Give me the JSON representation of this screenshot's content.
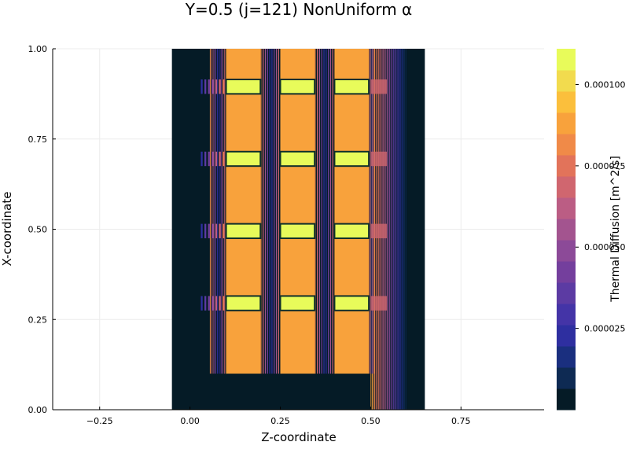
{
  "chart_data": {
    "type": "heatmap",
    "title": "Y=0.5 (j=121) NonUniform α",
    "xlabel": "Z-coordinate",
    "ylabel": "X-coordinate",
    "colorbar_label": "Thermal Diffusion [m^2/s]",
    "xlim": [
      -0.38,
      0.98
    ],
    "ylim": [
      0.0,
      1.0
    ],
    "x_ticks": [
      -0.25,
      0.0,
      0.25,
      0.5,
      0.75
    ],
    "x_tick_labels": [
      "−0.25",
      "0.00",
      "0.25",
      "0.50",
      "0.75"
    ],
    "y_ticks": [
      0.0,
      0.25,
      0.5,
      0.75,
      1.0
    ],
    "y_tick_labels": [
      "0.00",
      "0.25",
      "0.50",
      "0.75",
      "1.00"
    ],
    "grid": true,
    "legend": "colorbar-right",
    "colorbar": {
      "range": [
        0.0,
        0.000111
      ],
      "ticks": [
        2.5e-05,
        5e-05,
        7.5e-05,
        0.0001
      ],
      "tick_labels": [
        "0.000025",
        "0.000050",
        "0.000075",
        "0.000100"
      ],
      "levels": 16,
      "colors": [
        "#051b26",
        "#0e2a53",
        "#1a2f7f",
        "#2e2fa0",
        "#4434a7",
        "#5c3ba3",
        "#743f9d",
        "#8c4a98",
        "#a3548f",
        "#bb5d84",
        "#d0666f",
        "#e2735a",
        "#f08a48",
        "#f8a23c",
        "#fbbf3c",
        "#f2db4e",
        "#e8fb5a"
      ]
    },
    "data_region": {
      "z": [
        -0.05,
        0.65
      ],
      "x": [
        0.0,
        1.0
      ]
    },
    "background_value": 0.0,
    "block_value": 9.1e-05,
    "spacer_value": 0.000111,
    "blocks": [
      {
        "z": [
          0.1,
          0.195
        ],
        "x": [
          0.1,
          1.0
        ]
      },
      {
        "z": [
          0.25,
          0.345
        ],
        "x": [
          0.1,
          1.0
        ]
      },
      {
        "z": [
          0.4,
          0.495
        ],
        "x": [
          0.1,
          1.0
        ]
      }
    ],
    "spacers": [
      {
        "x": [
          0.275,
          0.315
        ]
      },
      {
        "x": [
          0.475,
          0.515
        ]
      },
      {
        "x": [
          0.675,
          0.715
        ]
      },
      {
        "x": [
          0.875,
          0.915
        ]
      }
    ],
    "right_fringe": {
      "z": [
        0.5,
        0.6
      ],
      "x": [
        0.0,
        1.0
      ]
    }
  }
}
